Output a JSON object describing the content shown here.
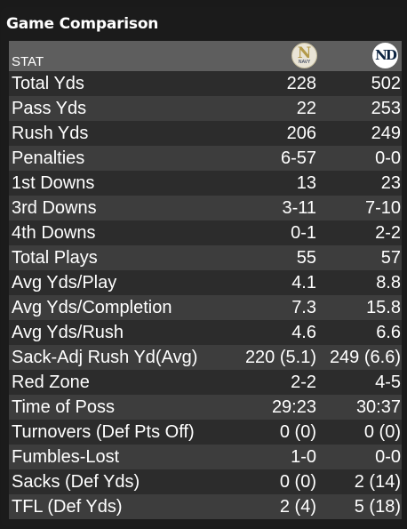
{
  "panel": {
    "title": "Game Comparison"
  },
  "table": {
    "header": {
      "stat_label": "STAT",
      "team1": {
        "logo_icon": "navy-logo-icon",
        "logo_letter": "N",
        "logo_sub": "NAVY"
      },
      "team2": {
        "logo_icon": "notre-dame-logo-icon",
        "logo_letter": "ND"
      }
    },
    "rows": [
      {
        "stat": "Total Yds",
        "team1": "228",
        "team2": "502"
      },
      {
        "stat": "Pass Yds",
        "team1": "22",
        "team2": "253"
      },
      {
        "stat": "Rush Yds",
        "team1": "206",
        "team2": "249"
      },
      {
        "stat": "Penalties",
        "team1": "6-57",
        "team2": "0-0"
      },
      {
        "stat": "1st Downs",
        "team1": "13",
        "team2": "23"
      },
      {
        "stat": "3rd Downs",
        "team1": "3-11",
        "team2": "7-10"
      },
      {
        "stat": "4th Downs",
        "team1": "0-1",
        "team2": "2-2"
      },
      {
        "stat": "Total Plays",
        "team1": "55",
        "team2": "57"
      },
      {
        "stat": "Avg Yds/Play",
        "team1": "4.1",
        "team2": "8.8"
      },
      {
        "stat": "Avg Yds/Completion",
        "team1": "7.3",
        "team2": "15.8"
      },
      {
        "stat": "Avg Yds/Rush",
        "team1": "4.6",
        "team2": "6.6"
      },
      {
        "stat": "Sack-Adj Rush Yd(Avg)",
        "team1": "220 (5.1)",
        "team2": "249 (6.6)"
      },
      {
        "stat": "Red Zone",
        "team1": "2-2",
        "team2": "4-5"
      },
      {
        "stat": "Time of Poss",
        "team1": "29:23",
        "team2": "30:37"
      },
      {
        "stat": "Turnovers (Def Pts Off)",
        "team1": "0 (0)",
        "team2": "0 (0)"
      },
      {
        "stat": "Fumbles-Lost",
        "team1": "1-0",
        "team2": "0-0"
      },
      {
        "stat": "Sacks (Def Yds)",
        "team1": "0 (0)",
        "team2": "2 (14)"
      },
      {
        "stat": "TFL (Def Yds)",
        "team1": "2 (4)",
        "team2": "5 (18)"
      }
    ]
  },
  "colors": {
    "background": "#1a1a1a",
    "header_row": "#5e5e5e",
    "row_dark": "#2c2c2c",
    "row_light": "#3d3d3d",
    "text": "#ffffff"
  }
}
